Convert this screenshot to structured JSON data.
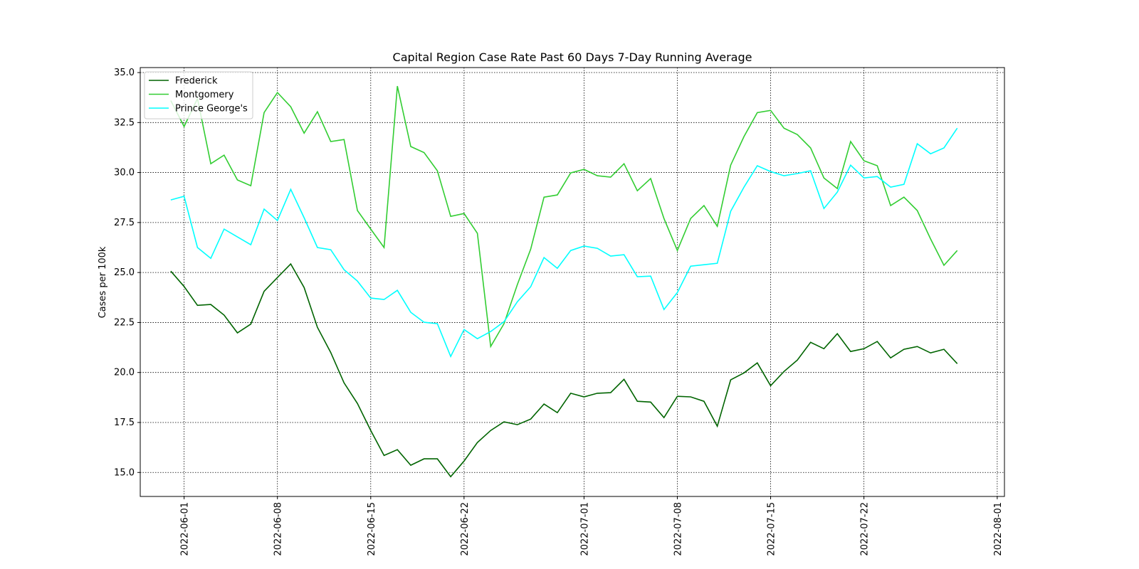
{
  "chart_data": {
    "type": "line",
    "title": "Capital Region Case Rate  Past 60 Days 7-Day Running Average",
    "y_label": "Cases per 100k",
    "x": [
      "2022-05-31",
      "2022-06-01",
      "2022-06-02",
      "2022-06-03",
      "2022-06-04",
      "2022-06-05",
      "2022-06-06",
      "2022-06-07",
      "2022-06-08",
      "2022-06-09",
      "2022-06-10",
      "2022-06-11",
      "2022-06-12",
      "2022-06-13",
      "2022-06-14",
      "2022-06-15",
      "2022-06-16",
      "2022-06-17",
      "2022-06-18",
      "2022-06-19",
      "2022-06-20",
      "2022-06-21",
      "2022-06-22",
      "2022-06-23",
      "2022-06-24",
      "2022-06-25",
      "2022-06-26",
      "2022-06-27",
      "2022-06-28",
      "2022-06-29",
      "2022-06-30",
      "2022-07-01",
      "2022-07-02",
      "2022-07-03",
      "2022-07-04",
      "2022-07-05",
      "2022-07-06",
      "2022-07-07",
      "2022-07-08",
      "2022-07-09",
      "2022-07-10",
      "2022-07-11",
      "2022-07-12",
      "2022-07-13",
      "2022-07-14",
      "2022-07-15",
      "2022-07-16",
      "2022-07-17",
      "2022-07-18",
      "2022-07-19",
      "2022-07-20",
      "2022-07-21",
      "2022-07-22",
      "2022-07-23",
      "2022-07-24",
      "2022-07-25",
      "2022-07-26",
      "2022-07-27",
      "2022-07-28",
      "2022-07-29"
    ],
    "series": [
      {
        "name": "Frederick",
        "color": "#006400",
        "values": [
          25.07,
          24.3,
          23.36,
          23.4,
          22.87,
          21.98,
          22.42,
          24.06,
          24.75,
          25.43,
          24.25,
          22.26,
          21.0,
          19.48,
          18.45,
          17.1,
          15.85,
          16.14,
          15.36,
          15.68,
          15.68,
          14.79,
          15.57,
          16.5,
          17.1,
          17.53,
          17.39,
          17.67,
          18.42,
          17.99,
          18.96,
          18.78,
          18.96,
          18.99,
          19.66,
          18.56,
          18.52,
          17.74,
          18.81,
          18.78,
          18.56,
          17.31,
          19.63,
          19.98,
          20.48,
          19.34,
          20.05,
          20.62,
          21.51,
          21.19,
          21.94,
          21.05,
          21.19,
          21.55,
          20.73,
          21.16,
          21.3,
          20.98,
          21.16,
          20.44
        ]
      },
      {
        "name": "Montgomery",
        "color": "#32cd32",
        "values": [
          33.6,
          32.3,
          33.7,
          30.44,
          30.87,
          29.63,
          29.34,
          33.0,
          34.0,
          33.29,
          31.97,
          33.04,
          31.55,
          31.65,
          28.1,
          27.17,
          26.25,
          34.32,
          31.3,
          31.0,
          30.09,
          27.81,
          27.95,
          26.96,
          21.3,
          22.44,
          24.4,
          26.17,
          28.77,
          28.88,
          29.98,
          30.16,
          29.84,
          29.77,
          30.44,
          29.09,
          29.7,
          27.7,
          26.1,
          27.7,
          28.35,
          27.31,
          30.37,
          31.8,
          33.0,
          33.11,
          32.22,
          31.9,
          31.23,
          29.73,
          29.2,
          31.55,
          30.59,
          30.34,
          28.35,
          28.77,
          28.1,
          26.68,
          25.36,
          26.1
        ]
      },
      {
        "name": "Prince George's",
        "color": "#00ffff",
        "values": [
          28.63,
          28.81,
          26.25,
          25.71,
          27.17,
          26.78,
          26.39,
          28.17,
          27.6,
          29.16,
          27.74,
          26.25,
          26.14,
          25.14,
          24.57,
          23.72,
          23.65,
          24.11,
          23.01,
          22.51,
          22.44,
          20.8,
          22.15,
          21.69,
          22.05,
          22.54,
          23.54,
          24.29,
          25.75,
          25.21,
          26.1,
          26.32,
          26.21,
          25.82,
          25.89,
          24.79,
          24.82,
          23.15,
          24.0,
          25.32,
          25.39,
          25.46,
          28.06,
          29.27,
          30.34,
          30.05,
          29.84,
          29.95,
          30.09,
          28.2,
          29.02,
          30.37,
          29.73,
          29.8,
          29.27,
          29.41,
          31.44,
          30.94,
          31.23,
          32.22
        ]
      }
    ],
    "xlim": [
      "2022-05-28T17:00",
      "2022-08-01T13:00"
    ],
    "xticks": [
      "2022-06-01",
      "2022-06-08",
      "2022-06-15",
      "2022-06-22",
      "2022-07-01",
      "2022-07-08",
      "2022-07-15",
      "2022-07-22",
      "2022-08-01"
    ],
    "ylim": [
      13.8,
      35.25
    ],
    "yticks": [
      {
        "value": 15,
        "label": "15.0"
      },
      {
        "value": 17.5,
        "label": "17.5"
      },
      {
        "value": 20,
        "label": "20.0"
      },
      {
        "value": 22.5,
        "label": "22.5"
      },
      {
        "value": 25,
        "label": "25.0"
      },
      {
        "value": 27.5,
        "label": "27.5"
      },
      {
        "value": 30,
        "label": "30.0"
      },
      {
        "value": 32.5,
        "label": "32.5"
      },
      {
        "value": 35,
        "label": "35.0"
      }
    ],
    "grid": true,
    "legend": "upper left"
  }
}
